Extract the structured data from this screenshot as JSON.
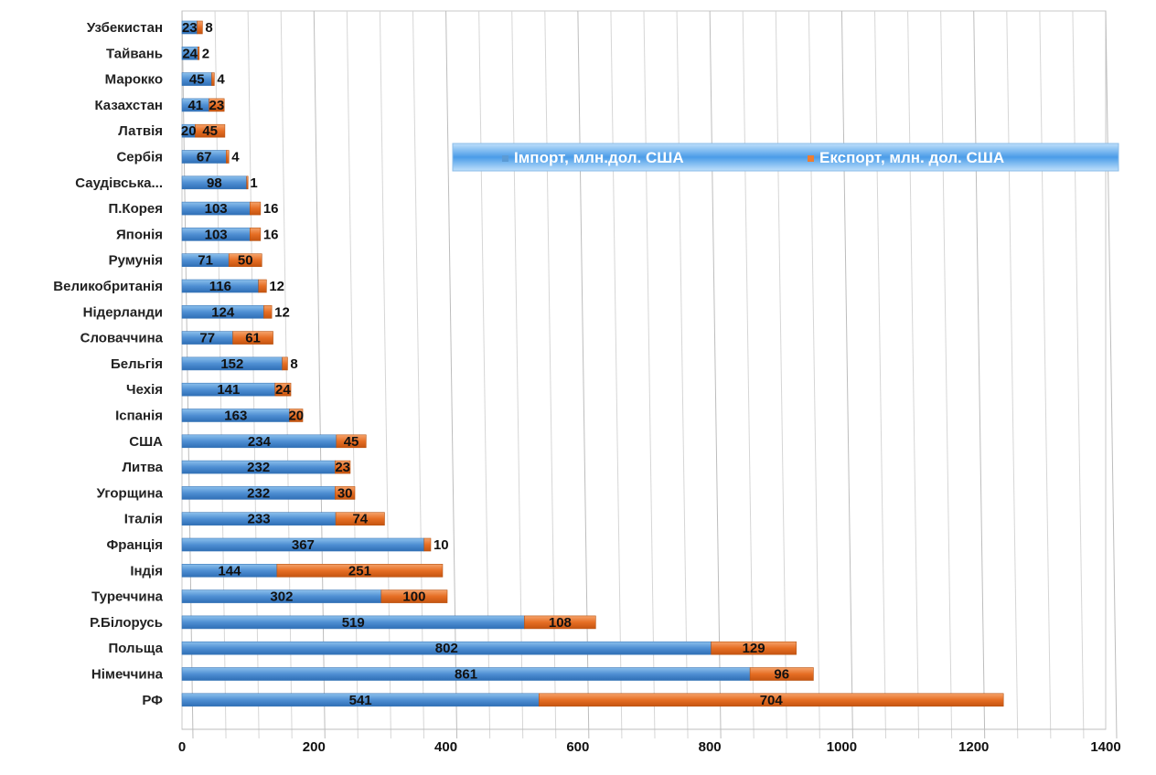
{
  "chart_data": {
    "type": "bar",
    "orientation": "horizontal",
    "stacked": true,
    "categories": [
      "Узбекистан",
      "Тайвань",
      "Марокко",
      "Казахстан",
      "Латвія",
      "Сербія",
      "Саудівська...",
      "П.Корея",
      "Японія",
      "Румунія",
      "Великобританія",
      "Нідерланди",
      "Словаччина",
      "Бельгія",
      "Чехія",
      "Іспанія",
      "США",
      "Литва",
      "Угорщина",
      "Італія",
      "Франція",
      "Індія",
      "Туреччина",
      "Р.Білорусь",
      "Польща",
      "Німеччина",
      "РФ"
    ],
    "series": [
      {
        "name": "Імпорт, млн.дол. США",
        "color": "#5b9bd5",
        "values": [
          23,
          24,
          45,
          41,
          20,
          67,
          98,
          103,
          103,
          71,
          116,
          124,
          77,
          152,
          141,
          163,
          234,
          232,
          232,
          233,
          367,
          144,
          302,
          519,
          802,
          861,
          541
        ]
      },
      {
        "name": "Експорт, млн. дол. США",
        "color": "#ed7d31",
        "values": [
          8,
          2,
          4,
          23,
          45,
          4,
          1,
          16,
          16,
          50,
          12,
          12,
          61,
          8,
          24,
          20,
          45,
          23,
          30,
          74,
          10,
          251,
          100,
          108,
          129,
          96,
          704
        ]
      }
    ],
    "xlim": [
      0,
      1400
    ],
    "xticks": [
      0,
      200,
      400,
      600,
      800,
      1000,
      1200,
      1400
    ],
    "grid": true,
    "legend": "top-right"
  }
}
